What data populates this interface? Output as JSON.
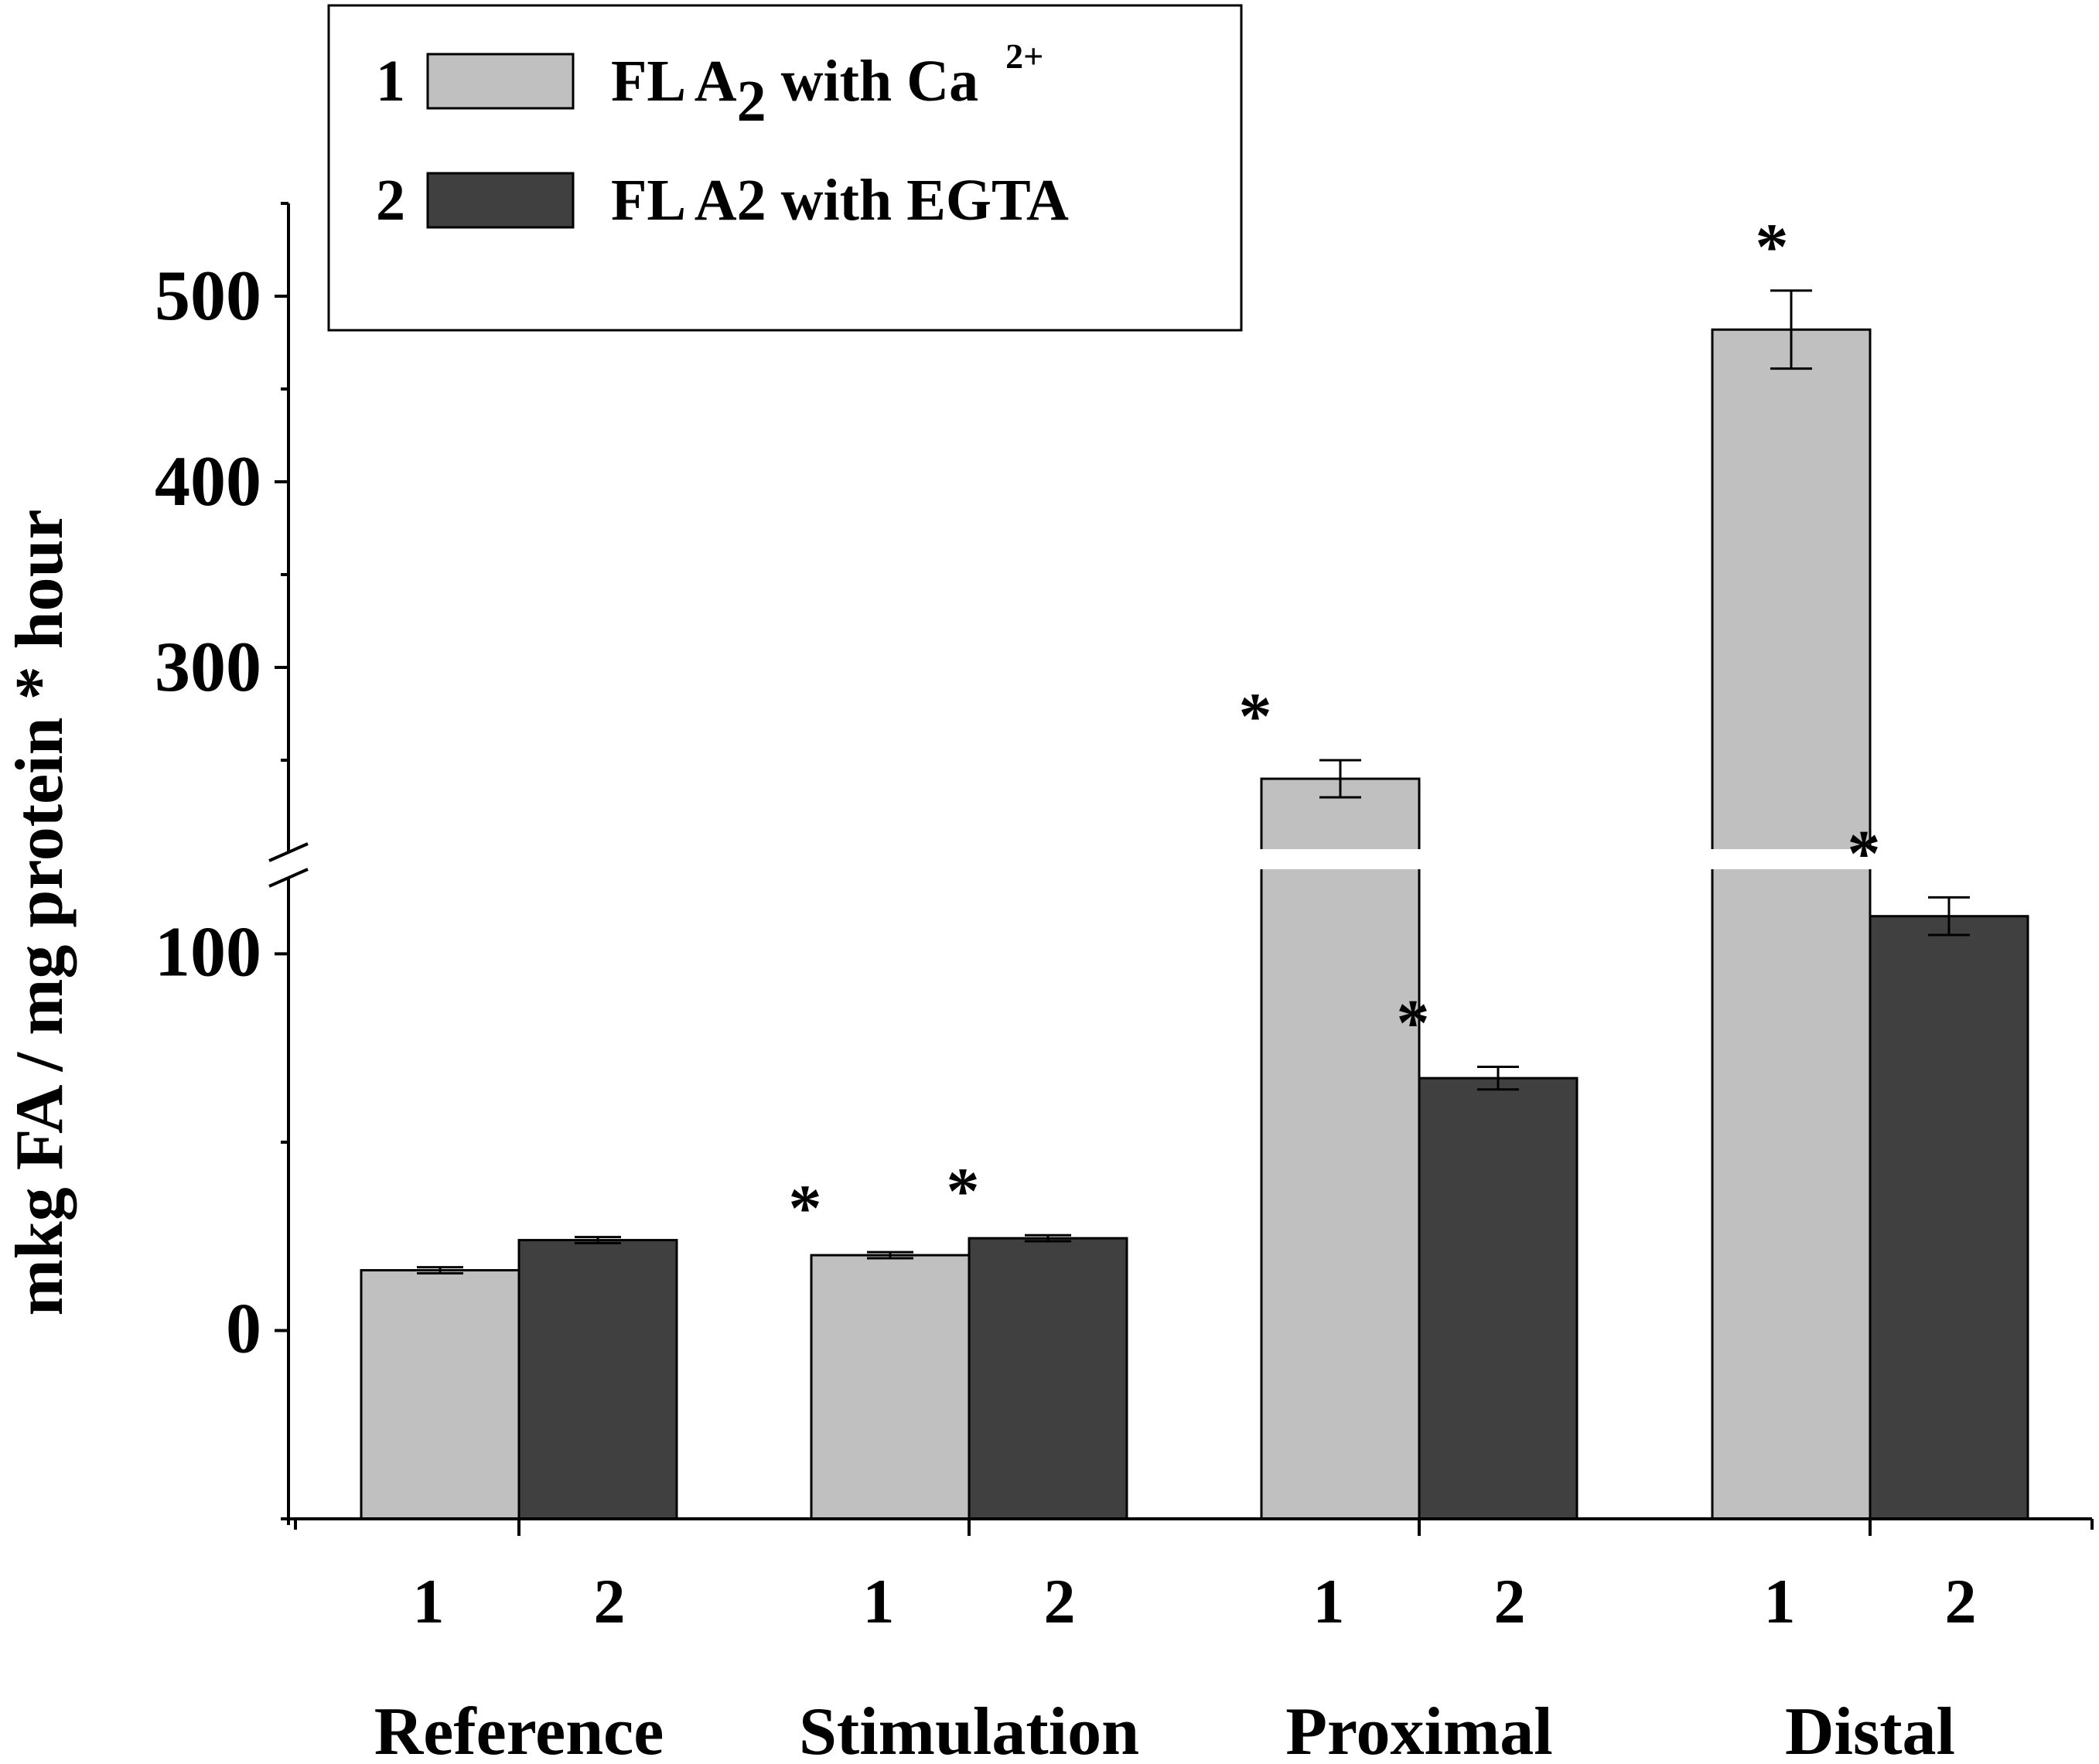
{
  "chart_data": {
    "type": "bar",
    "title": "",
    "xlabel": "",
    "ylabel": "mkg FA / mg protein * hour",
    "axis_break": {
      "lower_range": [
        -50,
        120
      ],
      "upper_range": [
        200,
        550
      ],
      "lower_ticks": [
        0,
        100
      ],
      "upper_ticks": [
        300,
        400,
        500
      ],
      "lower_tick_labels": [
        "0",
        "100"
      ],
      "upper_tick_labels": [
        "300",
        "400",
        "500"
      ],
      "break_between": [
        120,
        200
      ]
    },
    "groups": [
      {
        "label": "Reference",
        "bar_labels": [
          "1",
          "2"
        ]
      },
      {
        "label": "Stimulation",
        "bar_labels": [
          "1",
          "2"
        ]
      },
      {
        "label": "Proximal",
        "bar_labels": [
          "1",
          "2"
        ]
      },
      {
        "label": "Distal",
        "bar_labels": [
          "1",
          "2"
        ]
      }
    ],
    "categories": [
      "Reference",
      "Stimulation",
      "Proximal",
      "Distal"
    ],
    "series": [
      {
        "key": "1",
        "name_prefix": "FL A",
        "name_sub": "2",
        "name_mid": " with Ca ",
        "name_sup": "2+",
        "color": "#c0c0c0",
        "values": [
          16,
          20,
          240,
          482
        ],
        "errors": [
          0.8,
          0.8,
          10,
          21
        ],
        "significant": [
          false,
          true,
          true,
          true
        ]
      },
      {
        "key": "2",
        "name": "FL A2 with EGTA",
        "color": "#404040",
        "values": [
          24,
          24.5,
          67,
          110
        ],
        "errors": [
          0.8,
          0.8,
          3,
          5
        ],
        "significant": [
          false,
          true,
          true,
          true
        ]
      }
    ],
    "significance_marker": "*",
    "legend_position": "top-left"
  }
}
